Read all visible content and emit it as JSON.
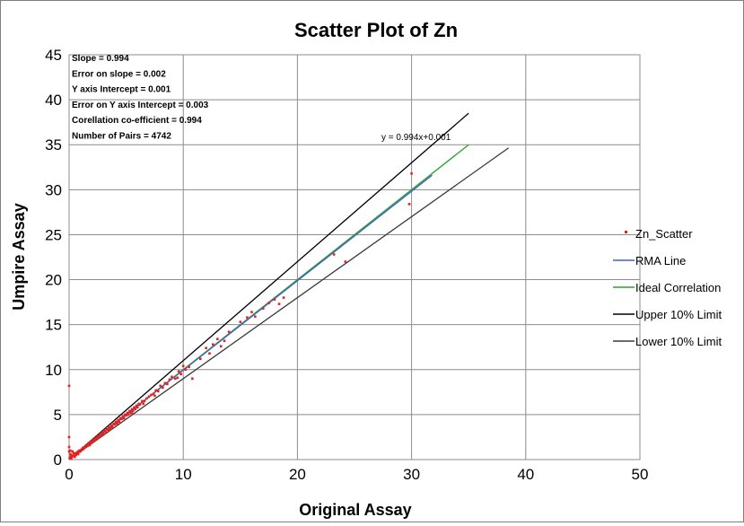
{
  "chart_data": {
    "type": "scatter",
    "title": "Scatter Plot of Zn",
    "xlabel": "Original Assay",
    "ylabel": "Umpire Assay",
    "xlim": [
      0,
      50
    ],
    "ylim": [
      0,
      45
    ],
    "x_ticks": [
      "0",
      "10",
      "20",
      "30",
      "40",
      "50"
    ],
    "y_ticks": [
      "0",
      "5",
      "10",
      "15",
      "20",
      "25",
      "30",
      "35",
      "40",
      "45"
    ],
    "grid": true,
    "legend_position": "right",
    "stats_box": [
      "Slope = 0.994",
      "Error on slope = 0.002",
      "Y axis Intercept = 0.001",
      "Error on Y axis Intercept = 0.003",
      "Corellation co-efficient = 0.994",
      "Number of Pairs = 4742"
    ],
    "equation_label": "y = 0.994x+0.001",
    "series": [
      {
        "name": "Zn_Scatter",
        "kind": "points",
        "color": "#e8211d",
        "x": [
          0,
          0,
          0,
          0,
          0.1,
          0.1,
          0.2,
          0.3,
          0.3,
          0.4,
          0.5,
          0.5,
          0.6,
          0.7,
          0.8,
          0.9,
          1.0,
          1.1,
          1.2,
          1.3,
          1.4,
          1.5,
          1.6,
          1.7,
          1.8,
          1.9,
          2.0,
          2.1,
          2.2,
          2.3,
          2.4,
          2.5,
          2.6,
          2.7,
          2.8,
          2.9,
          3.0,
          3.1,
          3.2,
          3.3,
          3.4,
          3.5,
          3.6,
          3.7,
          3.8,
          3.9,
          4.0,
          4.1,
          4.2,
          4.3,
          4.4,
          4.5,
          4.6,
          4.7,
          4.8,
          4.9,
          5.0,
          5.1,
          5.2,
          5.3,
          5.4,
          5.5,
          5.6,
          5.7,
          5.8,
          5.9,
          6.0,
          6.1,
          6.2,
          6.4,
          6.6,
          6.8,
          7.0,
          7.2,
          7.4,
          7.6,
          7.8,
          8.0,
          8.2,
          8.4,
          8.6,
          8.8,
          9.0,
          9.3,
          9.6,
          9.8,
          10.0,
          10.2,
          10.5,
          10.8,
          11.5,
          12.0,
          12.3,
          12.6,
          13.0,
          13.3,
          13.6,
          14.0,
          15.0,
          15.6,
          16.0,
          16.3,
          17.0,
          17.5,
          18.0,
          18.4,
          18.8,
          23.2,
          24.2,
          29.8,
          30.0,
          0.2,
          0.8,
          1.2,
          2.5,
          3.5,
          4.8,
          6.5,
          0.05,
          0.15,
          0.6,
          1.0,
          1.8,
          3.0,
          4.2,
          5.5,
          7.5,
          9.5
        ],
        "y": [
          8.2,
          2.5,
          1.4,
          0.9,
          0.6,
          1.0,
          0.5,
          0.9,
          0.4,
          0.7,
          0.3,
          0.6,
          0.7,
          0.8,
          0.9,
          1.0,
          1.0,
          1.1,
          1.3,
          1.3,
          1.4,
          1.6,
          1.5,
          1.8,
          1.7,
          2.0,
          1.9,
          2.2,
          2.1,
          2.4,
          2.3,
          2.6,
          2.5,
          2.8,
          2.7,
          3.0,
          2.9,
          3.2,
          3.1,
          3.4,
          3.3,
          3.6,
          3.5,
          3.8,
          3.6,
          4.0,
          3.9,
          4.2,
          4.1,
          4.4,
          4.2,
          4.6,
          4.5,
          4.8,
          4.6,
          5.0,
          4.9,
          5.2,
          5.0,
          5.4,
          5.2,
          5.6,
          5.4,
          5.8,
          5.6,
          6.0,
          5.8,
          6.2,
          6.1,
          6.5,
          6.5,
          6.8,
          7.0,
          7.2,
          7.3,
          7.7,
          7.6,
          8.2,
          8.0,
          8.5,
          8.4,
          8.9,
          9.2,
          9.0,
          9.8,
          9.5,
          10.4,
          10.0,
          10.3,
          9.0,
          11.2,
          12.4,
          11.8,
          12.8,
          13.4,
          12.6,
          13.2,
          14.2,
          15.3,
          15.8,
          16.4,
          15.9,
          16.8,
          17.4,
          17.8,
          17.3,
          18.0,
          22.8,
          22.0,
          28.4,
          31.8,
          0.1,
          0.6,
          1.1,
          2.4,
          3.3,
          4.6,
          6.2,
          0.2,
          0.3,
          0.5,
          0.9,
          1.6,
          2.8,
          4.0,
          5.2,
          7.1,
          9.1
        ]
      },
      {
        "name": "RMA Line",
        "kind": "line",
        "color": "#3f63c8",
        "x": [
          0,
          31.8
        ],
        "y": [
          0.001,
          31.61
        ]
      },
      {
        "name": "Ideal Correlation",
        "kind": "line",
        "color": "#28a028",
        "x": [
          0,
          35
        ],
        "y": [
          0,
          35
        ]
      },
      {
        "name": "Upper 10% Limit",
        "kind": "line",
        "color": "#000000",
        "x": [
          0,
          35
        ],
        "y": [
          0,
          38.5
        ]
      },
      {
        "name": "Lower 10% Limit",
        "kind": "line",
        "color": "#3a3a3a",
        "x": [
          0,
          38.5
        ],
        "y": [
          0,
          34.65
        ]
      }
    ]
  }
}
